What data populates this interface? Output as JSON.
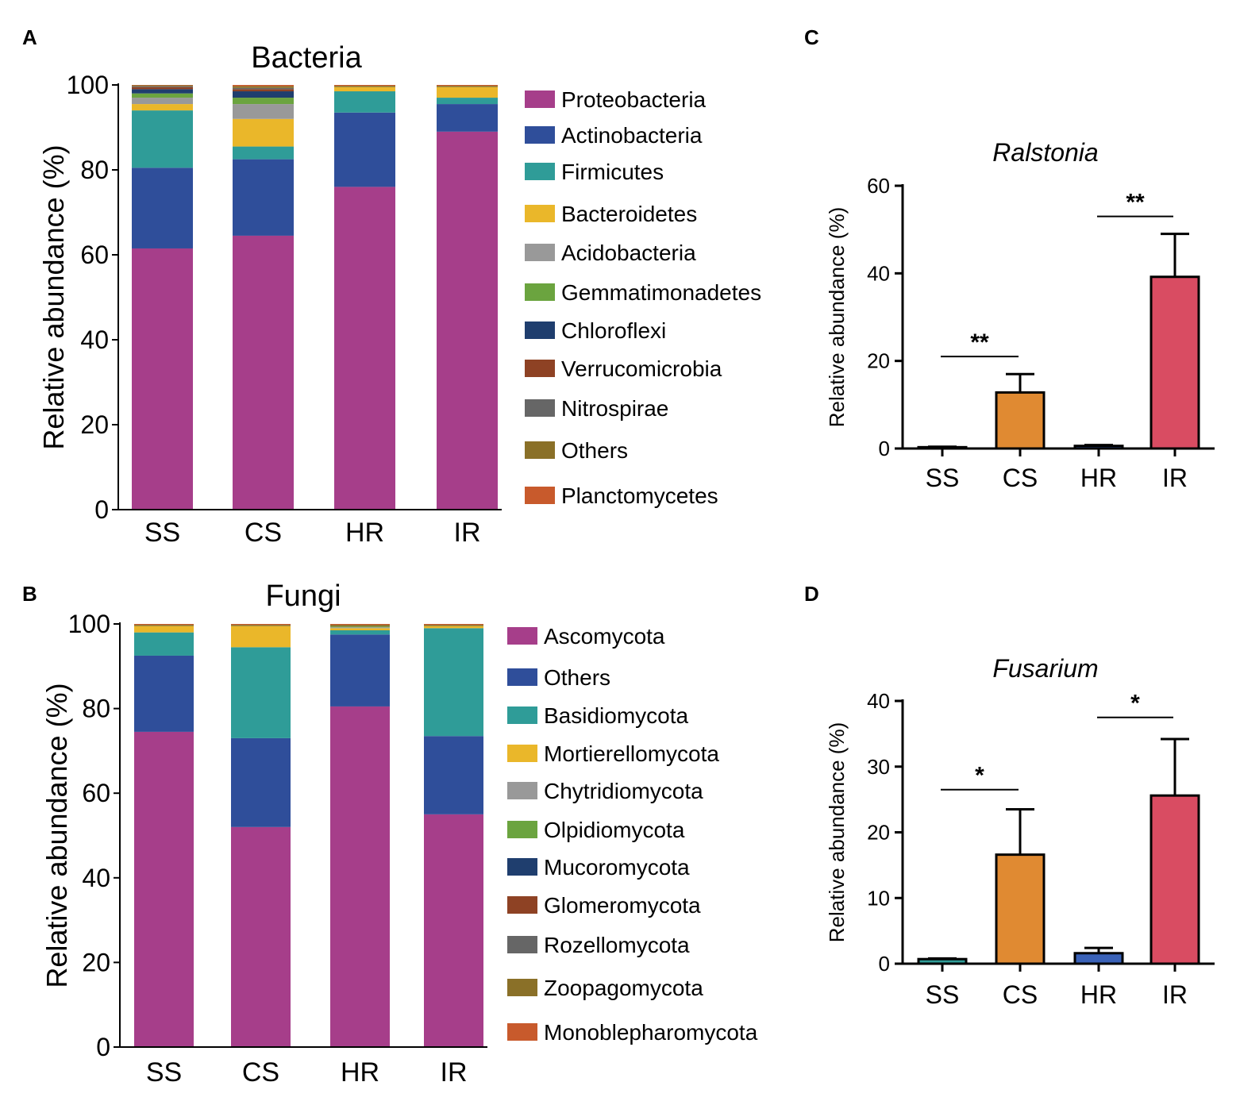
{
  "chart_data": [
    {
      "panel": "A",
      "type": "bar",
      "stacked": true,
      "title": "Bacteria",
      "xlabel": "",
      "ylabel": "Relative abundance (%)",
      "ylim": [
        0,
        100
      ],
      "yticks": [
        0,
        20,
        40,
        60,
        80,
        100
      ],
      "categories": [
        "SS",
        "CS",
        "HR",
        "IR"
      ],
      "series": [
        {
          "name": "Proteobacteria",
          "color": "#A63E8A",
          "values": [
            61.5,
            64.5,
            76,
            89
          ]
        },
        {
          "name": "Actinobacteria",
          "color": "#2F4E9A",
          "values": [
            19,
            18,
            17.5,
            6.5
          ]
        },
        {
          "name": "Firmicutes",
          "color": "#2F9C98",
          "values": [
            13.5,
            3,
            5,
            1.5
          ]
        },
        {
          "name": "Bacteroidetes",
          "color": "#EAB72A",
          "values": [
            1.5,
            6.5,
            1,
            2.5
          ]
        },
        {
          "name": "Acidobacteria",
          "color": "#999999",
          "values": [
            1.5,
            3.5,
            0,
            0
          ]
        },
        {
          "name": "Gemmatimonadetes",
          "color": "#6BA43F",
          "values": [
            1,
            1.5,
            0,
            0
          ]
        },
        {
          "name": "Chloroflexi",
          "color": "#1F3E6E",
          "values": [
            1,
            1.5,
            0,
            0
          ]
        },
        {
          "name": "Verrucomicrobia",
          "color": "#8E4224",
          "values": [
            0.5,
            0.5,
            0,
            0
          ]
        },
        {
          "name": "Nitrospirae",
          "color": "#666666",
          "values": [
            0.2,
            0.3,
            0,
            0
          ]
        },
        {
          "name": "Others",
          "color": "#8A7028",
          "values": [
            0.2,
            0.4,
            0.3,
            0.3
          ]
        },
        {
          "name": "Planctomycetes",
          "color": "#C85A2C",
          "values": [
            0.1,
            0.3,
            0.2,
            0.2
          ]
        }
      ]
    },
    {
      "panel": "B",
      "type": "bar",
      "stacked": true,
      "title": "Fungi",
      "xlabel": "",
      "ylabel": "Relative abundance (%)",
      "ylim": [
        0,
        100
      ],
      "yticks": [
        0,
        20,
        40,
        60,
        80,
        100
      ],
      "categories": [
        "SS",
        "CS",
        "HR",
        "IR"
      ],
      "series": [
        {
          "name": "Ascomycota",
          "color": "#A63E8A",
          "values": [
            74.5,
            52,
            80.5,
            55
          ]
        },
        {
          "name": "Others",
          "color": "#2F4E9A",
          "values": [
            18,
            21,
            17,
            18.5
          ]
        },
        {
          "name": "Basidiomycota",
          "color": "#2F9C98",
          "values": [
            5.5,
            21.5,
            1,
            25.5
          ]
        },
        {
          "name": "Mortierellomycota",
          "color": "#EAB72A",
          "values": [
            1.5,
            5,
            0.5,
            0.5
          ]
        },
        {
          "name": "Chytridiomycota",
          "color": "#999999",
          "values": [
            0,
            0,
            0.2,
            0
          ]
        },
        {
          "name": "Olpidiomycota",
          "color": "#6BA43F",
          "values": [
            0,
            0,
            0.2,
            0
          ]
        },
        {
          "name": "Mucoromycota",
          "color": "#1F3E6E",
          "values": [
            0,
            0,
            0,
            0
          ]
        },
        {
          "name": "Glomeromycota",
          "color": "#8E4224",
          "values": [
            0,
            0,
            0,
            0
          ]
        },
        {
          "name": "Rozellomycota",
          "color": "#666666",
          "values": [
            0,
            0,
            0,
            0
          ]
        },
        {
          "name": "Zoopagomycota",
          "color": "#8A7028",
          "values": [
            0.3,
            0.3,
            0.4,
            0.3
          ]
        },
        {
          "name": "Monoblepharomycota",
          "color": "#C85A2C",
          "values": [
            0.2,
            0.2,
            0.2,
            0.2
          ]
        }
      ]
    },
    {
      "panel": "C",
      "type": "bar",
      "title": "Ralstonia",
      "xlabel": "",
      "ylabel": "Relative abundance (%)",
      "ylim": [
        0,
        60
      ],
      "yticks": [
        0,
        20,
        40,
        60
      ],
      "categories": [
        "SS",
        "CS",
        "HR",
        "IR"
      ],
      "values": [
        0.3,
        12.8,
        0.6,
        39.2
      ],
      "errors": [
        0.1,
        4.2,
        0.2,
        9.8
      ],
      "colors": [
        "#2F9C98",
        "#E08A32",
        "#3A62B8",
        "#D94C62"
      ],
      "significance": [
        {
          "from": "SS",
          "to": "CS",
          "label": "**",
          "level": 21
        },
        {
          "from": "HR",
          "to": "IR",
          "label": "**",
          "level": 53
        }
      ]
    },
    {
      "panel": "D",
      "type": "bar",
      "title": "Fusarium",
      "xlabel": "",
      "ylabel": "Relative abundance (%)",
      "ylim": [
        0,
        40
      ],
      "yticks": [
        0,
        10,
        20,
        30,
        40
      ],
      "categories": [
        "SS",
        "CS",
        "HR",
        "IR"
      ],
      "values": [
        0.7,
        16.6,
        1.6,
        25.6
      ],
      "errors": [
        0.1,
        6.9,
        0.8,
        8.6
      ],
      "colors": [
        "#2F9C98",
        "#E08A32",
        "#3A62B8",
        "#D94C62"
      ],
      "significance": [
        {
          "from": "SS",
          "to": "CS",
          "label": "*",
          "level": 26.5
        },
        {
          "from": "HR",
          "to": "IR",
          "label": "*",
          "level": 37.5
        }
      ]
    }
  ],
  "panel_labels": {
    "a": "A",
    "b": "B",
    "c": "C",
    "d": "D"
  }
}
